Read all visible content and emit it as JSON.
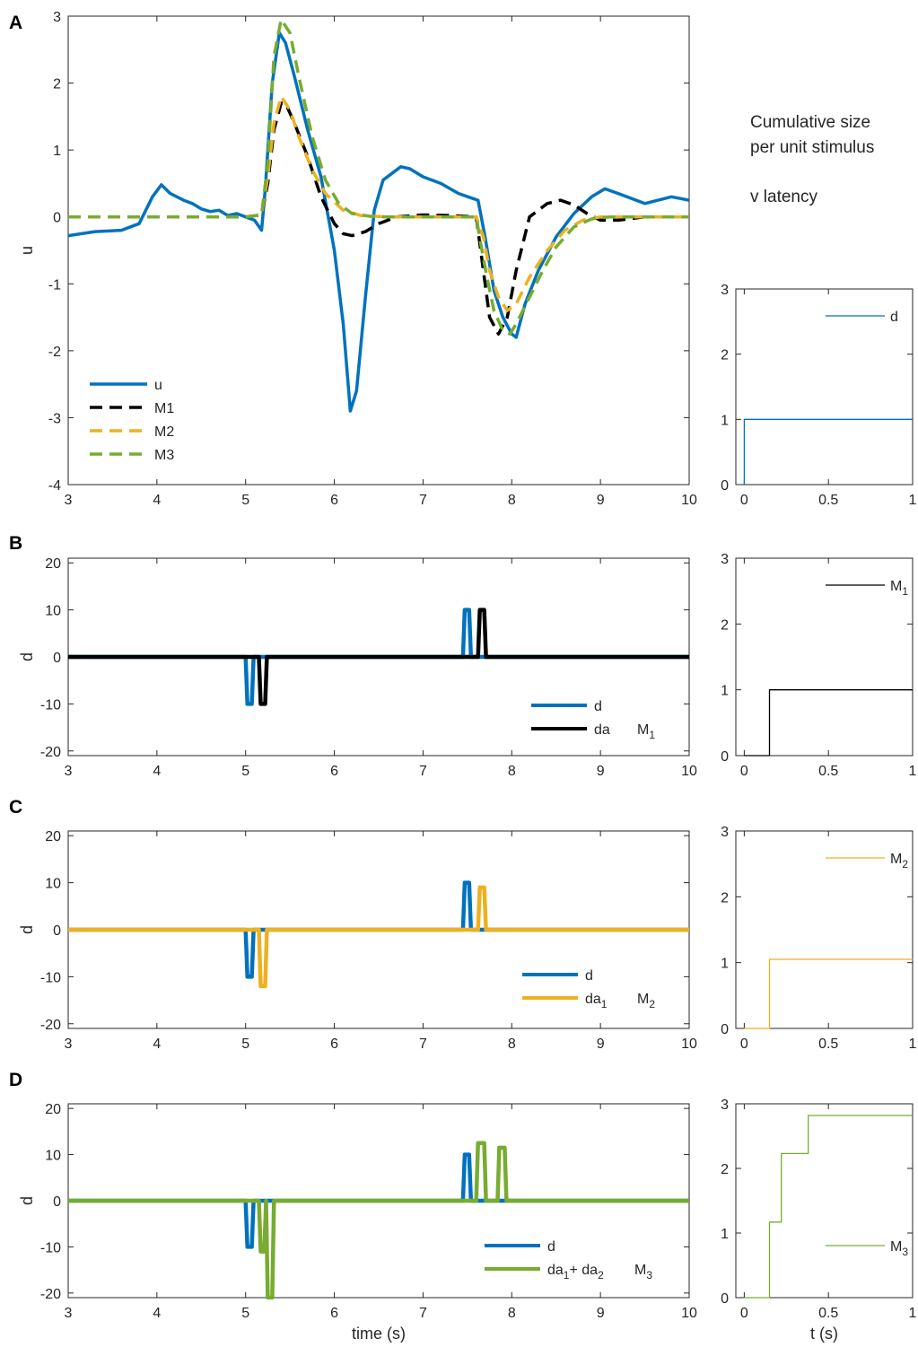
{
  "side_note": {
    "line1": "Cumulative size",
    "line2": "per unit stimulus",
    "line3": "v latency"
  },
  "colors": {
    "blue": "#0072BD",
    "black": "#000000",
    "orange": "#EDB120",
    "green": "#77AC30"
  },
  "chart_data": [
    {
      "id": "A",
      "panel_label": "A",
      "type": "line",
      "ylabel": "u",
      "xlabel": "",
      "xlim": [
        3,
        10
      ],
      "ylim": [
        -4,
        3
      ],
      "xticks": [
        "3",
        "4",
        "5",
        "6",
        "7",
        "8",
        "9",
        "10"
      ],
      "yticks": [
        "-4",
        "-3",
        "-2",
        "-1",
        "0",
        "1",
        "2",
        "3"
      ],
      "legend": {
        "placement": "bottom-left",
        "entries": [
          {
            "label": "u",
            "color": "#0072BD",
            "dash": "solid"
          },
          {
            "label": "M1",
            "color": "#000000",
            "dash": "dashed"
          },
          {
            "label": "M2",
            "color": "#EDB120",
            "dash": "dashed"
          },
          {
            "label": "M3",
            "color": "#77AC30",
            "dash": "dashed"
          }
        ]
      },
      "series": [
        {
          "name": "u",
          "color": "#0072BD",
          "dash": "solid",
          "width": 3.5,
          "x": [
            3.0,
            3.3,
            3.6,
            3.8,
            3.95,
            4.05,
            4.15,
            4.3,
            4.4,
            4.5,
            4.6,
            4.7,
            4.8,
            4.9,
            5.0,
            5.1,
            5.18,
            5.22,
            5.3,
            5.38,
            5.45,
            5.55,
            5.7,
            5.85,
            6.0,
            6.1,
            6.18,
            6.25,
            6.35,
            6.45,
            6.55,
            6.65,
            6.75,
            6.85,
            7.0,
            7.2,
            7.4,
            7.55,
            7.62,
            7.7,
            7.8,
            7.9,
            8.0,
            8.05,
            8.15,
            8.3,
            8.5,
            8.7,
            8.9,
            9.05,
            9.2,
            9.5,
            9.8,
            10.0
          ],
          "y": [
            -0.28,
            -0.22,
            -0.2,
            -0.1,
            0.3,
            0.48,
            0.35,
            0.25,
            0.2,
            0.12,
            0.08,
            0.1,
            0.02,
            0.05,
            0.0,
            -0.05,
            -0.2,
            0.4,
            2.0,
            2.75,
            2.6,
            2.1,
            1.3,
            0.6,
            -0.5,
            -1.6,
            -2.9,
            -2.6,
            -1.2,
            0.1,
            0.55,
            0.65,
            0.75,
            0.72,
            0.6,
            0.5,
            0.35,
            0.28,
            0.25,
            -0.3,
            -1.1,
            -1.5,
            -1.75,
            -1.8,
            -1.3,
            -0.8,
            -0.3,
            0.05,
            0.3,
            0.42,
            0.35,
            0.2,
            0.3,
            0.25
          ]
        },
        {
          "name": "M1",
          "color": "#000000",
          "dash": "dashed",
          "width": 3.5,
          "x": [
            3.0,
            5.0,
            5.18,
            5.25,
            5.32,
            5.4,
            5.45,
            5.55,
            5.7,
            5.85,
            6.0,
            6.1,
            6.2,
            6.35,
            6.5,
            6.7,
            7.0,
            7.3,
            7.6,
            7.65,
            7.7,
            7.75,
            7.85,
            7.95,
            8.05,
            8.2,
            8.4,
            8.55,
            8.7,
            8.85,
            9.0,
            9.2,
            9.5,
            10.0
          ],
          "y": [
            0,
            0,
            0.03,
            0.5,
            1.3,
            1.7,
            1.7,
            1.4,
            0.9,
            0.3,
            -0.1,
            -0.25,
            -0.28,
            -0.22,
            -0.1,
            0,
            0.03,
            0.02,
            0,
            -0.5,
            -1.0,
            -1.5,
            -1.75,
            -1.5,
            -0.8,
            0.0,
            0.2,
            0.25,
            0.18,
            0.05,
            -0.05,
            -0.05,
            0,
            0
          ]
        },
        {
          "name": "M2",
          "color": "#EDB120",
          "dash": "dashed",
          "width": 3.5,
          "x": [
            3.0,
            5.0,
            5.18,
            5.25,
            5.32,
            5.4,
            5.5,
            5.6,
            5.75,
            5.9,
            6.1,
            6.3,
            6.6,
            7.0,
            7.6,
            7.68,
            7.75,
            7.85,
            7.95,
            8.05,
            8.2,
            8.4,
            8.6,
            8.8,
            9.0,
            9.3,
            9.6,
            10.0
          ],
          "y": [
            0,
            0,
            0.03,
            0.6,
            1.4,
            1.8,
            1.6,
            1.2,
            0.7,
            0.35,
            0.1,
            0.02,
            0,
            0,
            0,
            -0.3,
            -0.8,
            -1.2,
            -1.4,
            -1.3,
            -0.9,
            -0.5,
            -0.2,
            -0.05,
            0,
            0,
            0,
            0
          ]
        },
        {
          "name": "M3",
          "color": "#77AC30",
          "dash": "dashed",
          "width": 3.5,
          "x": [
            3.0,
            5.0,
            5.18,
            5.25,
            5.32,
            5.4,
            5.5,
            5.6,
            5.75,
            5.9,
            6.05,
            6.2,
            6.4,
            6.6,
            7.0,
            7.6,
            7.65,
            7.72,
            7.8,
            7.9,
            7.98,
            8.05,
            8.2,
            8.35,
            8.5,
            8.7,
            8.9,
            9.1,
            9.4,
            10.0
          ],
          "y": [
            0,
            0,
            0.03,
            0.8,
            2.4,
            2.95,
            2.75,
            2.1,
            1.2,
            0.55,
            0.2,
            0.05,
            0.01,
            0,
            0,
            0,
            -0.4,
            -0.9,
            -1.4,
            -1.7,
            -1.75,
            -1.6,
            -1.2,
            -0.8,
            -0.45,
            -0.15,
            -0.03,
            0,
            0,
            0
          ]
        }
      ]
    },
    {
      "id": "B",
      "panel_label": "B",
      "type": "line",
      "ylabel": "d",
      "xlabel": "",
      "xlim": [
        3,
        10
      ],
      "ylim": [
        -21,
        21
      ],
      "xticks": [
        "3",
        "4",
        "5",
        "6",
        "7",
        "8",
        "9",
        "10"
      ],
      "yticks": [
        "-20",
        "-10",
        "0",
        "10",
        "20"
      ],
      "legend": {
        "placement": "bottom-right",
        "model_label": "M",
        "model_sub": "1",
        "entries": [
          {
            "label": "d",
            "sub": "",
            "suffix": "",
            "color": "#0072BD"
          },
          {
            "label": "da",
            "sub": "",
            "suffix": "",
            "color": "#000000"
          }
        ]
      },
      "series": [
        {
          "name": "d",
          "color": "#0072BD",
          "width": 4.5,
          "x": [
            3.0,
            5.0,
            5.02,
            5.07,
            5.09,
            7.45,
            7.47,
            7.52,
            7.54,
            10.0
          ],
          "y": [
            0,
            0,
            -10,
            -10,
            0,
            0,
            10,
            10,
            0,
            0
          ]
        },
        {
          "name": "da",
          "color": "#000000",
          "width": 4.5,
          "x": [
            3.0,
            5.15,
            5.17,
            5.22,
            5.24,
            7.62,
            7.64,
            7.69,
            7.71,
            10.0
          ],
          "y": [
            0,
            0,
            -10,
            -10,
            0,
            0,
            10,
            10,
            0,
            0
          ]
        }
      ]
    },
    {
      "id": "C",
      "panel_label": "C",
      "type": "line",
      "ylabel": "d",
      "xlabel": "",
      "xlim": [
        3,
        10
      ],
      "ylim": [
        -21,
        21
      ],
      "xticks": [
        "3",
        "4",
        "5",
        "6",
        "7",
        "8",
        "9",
        "10"
      ],
      "yticks": [
        "-20",
        "-10",
        "0",
        "10",
        "20"
      ],
      "legend": {
        "placement": "bottom-right",
        "model_label": "M",
        "model_sub": "2",
        "entries": [
          {
            "label": "d",
            "sub": "",
            "suffix": "",
            "color": "#0072BD"
          },
          {
            "label": "da",
            "sub": "1",
            "suffix": "",
            "color": "#EDB120"
          }
        ]
      },
      "series": [
        {
          "name": "d",
          "color": "#0072BD",
          "width": 4.5,
          "x": [
            3.0,
            5.0,
            5.02,
            5.07,
            5.09,
            7.45,
            7.47,
            7.52,
            7.54,
            10.0
          ],
          "y": [
            0,
            0,
            -10,
            -10,
            0,
            0,
            10,
            10,
            0,
            0
          ]
        },
        {
          "name": "da1",
          "color": "#EDB120",
          "width": 4.5,
          "x": [
            3.0,
            5.15,
            5.17,
            5.22,
            5.24,
            7.62,
            7.64,
            7.69,
            7.71,
            10.0
          ],
          "y": [
            0,
            0,
            -12,
            -12,
            0,
            0,
            9,
            9,
            0,
            0
          ]
        }
      ]
    },
    {
      "id": "D",
      "panel_label": "D",
      "type": "line",
      "ylabel": "d",
      "xlabel": "time (s)",
      "xlim": [
        3,
        10
      ],
      "ylim": [
        -21,
        21
      ],
      "xticks": [
        "3",
        "4",
        "5",
        "6",
        "7",
        "8",
        "9",
        "10"
      ],
      "yticks": [
        "-20",
        "-10",
        "0",
        "10",
        "20"
      ],
      "legend": {
        "placement": "bottom-right",
        "model_label": "M",
        "model_sub": "3",
        "entries": [
          {
            "label": "d",
            "sub": "",
            "suffix": "",
            "color": "#0072BD"
          },
          {
            "label": "da",
            "sub": "1",
            "suffix": "+ da",
            "suffix_sub": "2",
            "color": "#77AC30"
          }
        ]
      },
      "series": [
        {
          "name": "d",
          "color": "#0072BD",
          "width": 4.5,
          "x": [
            3.0,
            5.0,
            5.02,
            5.07,
            5.09,
            7.45,
            7.47,
            7.52,
            7.54,
            10.0
          ],
          "y": [
            0,
            0,
            -10,
            -10,
            0,
            0,
            10,
            10,
            0,
            0
          ]
        },
        {
          "name": "da1 + da2",
          "color": "#77AC30",
          "width": 4.5,
          "x": [
            3.0,
            5.15,
            5.17,
            5.21,
            5.23,
            5.25,
            5.3,
            5.32,
            7.6,
            7.62,
            7.69,
            7.71,
            7.84,
            7.86,
            7.92,
            7.94,
            10.0
          ],
          "y": [
            0,
            0,
            -11,
            -11,
            0,
            -21,
            -21,
            0,
            0,
            12.5,
            12.5,
            0,
            0,
            11.5,
            11.5,
            0,
            0
          ]
        }
      ]
    },
    {
      "id": "SA",
      "type": "line",
      "ylabel": "",
      "xlabel": "",
      "xlim": [
        -0.05,
        1
      ],
      "ylim": [
        0,
        3
      ],
      "xticks": [
        "0",
        "0.5",
        "1"
      ],
      "yticks": [
        "0",
        "1",
        "2",
        "3"
      ],
      "legend": {
        "placement": "top-right",
        "label": "d",
        "sub": "",
        "color": "#0072BD"
      },
      "series": [
        {
          "name": "d",
          "color": "#0072BD",
          "width": 1.3,
          "x": [
            0,
            0,
            1
          ],
          "y": [
            0,
            1,
            1
          ]
        }
      ]
    },
    {
      "id": "SB",
      "type": "line",
      "ylabel": "",
      "xlabel": "",
      "xlim": [
        -0.05,
        1
      ],
      "ylim": [
        0,
        3
      ],
      "xticks": [
        "0",
        "0.5",
        "1"
      ],
      "yticks": [
        "0",
        "1",
        "2",
        "3"
      ],
      "legend": {
        "placement": "top-right",
        "label": "M",
        "sub": "1",
        "color": "#000000"
      },
      "series": [
        {
          "name": "M1",
          "color": "#000000",
          "width": 1.3,
          "x": [
            0,
            0.15,
            0.15,
            1
          ],
          "y": [
            0,
            0,
            1,
            1
          ]
        }
      ]
    },
    {
      "id": "SC",
      "type": "line",
      "ylabel": "",
      "xlabel": "",
      "xlim": [
        -0.05,
        1
      ],
      "ylim": [
        0,
        3
      ],
      "xticks": [
        "0",
        "0.5",
        "1"
      ],
      "yticks": [
        "0",
        "1",
        "2",
        "3"
      ],
      "legend": {
        "placement": "top-right",
        "label": "M",
        "sub": "2",
        "color": "#EDB120"
      },
      "series": [
        {
          "name": "M2",
          "color": "#EDB120",
          "width": 1.3,
          "x": [
            0,
            0.15,
            0.15,
            1
          ],
          "y": [
            0,
            0,
            1.05,
            1.05
          ]
        }
      ]
    },
    {
      "id": "SD",
      "type": "line",
      "ylabel": "",
      "xlabel": "t (s)",
      "xlim": [
        -0.05,
        1
      ],
      "ylim": [
        0,
        3
      ],
      "xticks": [
        "0",
        "0.5",
        "1"
      ],
      "yticks": [
        "0",
        "1",
        "2",
        "3"
      ],
      "legend": {
        "placement": "bottom-right",
        "label": "M",
        "sub": "3",
        "color": "#77AC30"
      },
      "series": [
        {
          "name": "M3",
          "color": "#77AC30",
          "width": 1.3,
          "x": [
            0,
            0.15,
            0.15,
            0.22,
            0.22,
            0.38,
            0.38,
            1
          ],
          "y": [
            0,
            0,
            1.17,
            1.17,
            2.23,
            2.23,
            2.82,
            2.82
          ]
        }
      ]
    }
  ]
}
